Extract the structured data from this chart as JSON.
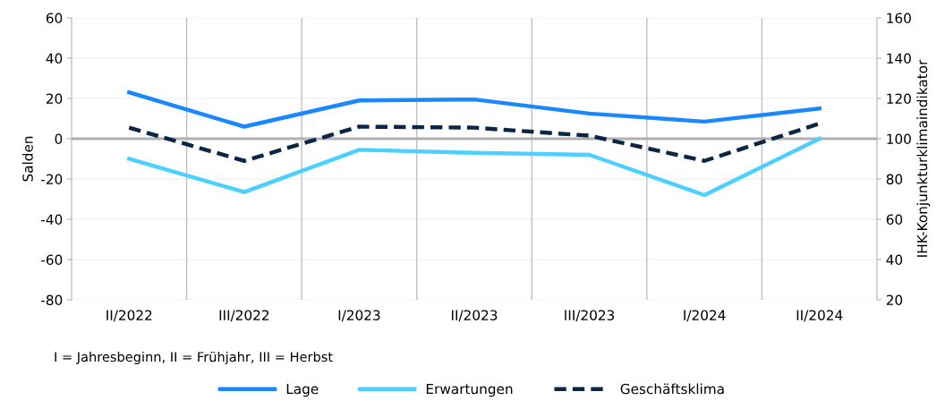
{
  "chart_data": {
    "type": "line",
    "ylabel": "Salden",
    "y2label": "IHK-Konjunkturklimaindikator",
    "categories": [
      "II/2022",
      "III/2022",
      "I/2023",
      "II/2023",
      "III/2023",
      "I/2024",
      "II/2024"
    ],
    "series": [
      {
        "name": "Lage",
        "color": "#1a87ff",
        "values": [
          23,
          6,
          19,
          19.5,
          12.5,
          8.5,
          15
        ],
        "line_style": "solid"
      },
      {
        "name": "Erwartungen",
        "color": "#4dd0ff",
        "values": [
          -10,
          -26.5,
          -5.5,
          -7,
          -8,
          -28,
          0
        ],
        "line_style": "solid"
      },
      {
        "name": "Geschäftsklima",
        "color": "#0b2545",
        "values": [
          105.5,
          89,
          106,
          105.5,
          101.5,
          89,
          107.5
        ],
        "line_style": "dashed",
        "axis": "y2"
      }
    ],
    "ylim": [
      -80,
      60
    ],
    "yticks": [
      -80,
      -60,
      -40,
      -20,
      0,
      20,
      40,
      60
    ],
    "y2lim": [
      20,
      160
    ],
    "y2ticks": [
      20,
      40,
      60,
      80,
      100,
      120,
      140,
      160
    ],
    "ref_lines": [
      {
        "axis": "y",
        "value": 0,
        "color": "#b0b0b0"
      }
    ],
    "grid": true,
    "legend": "bottom",
    "marker": "none",
    "annotations": [
      "I = Jahresbeginn, II = Frühjahr, III = Herbst"
    ]
  }
}
